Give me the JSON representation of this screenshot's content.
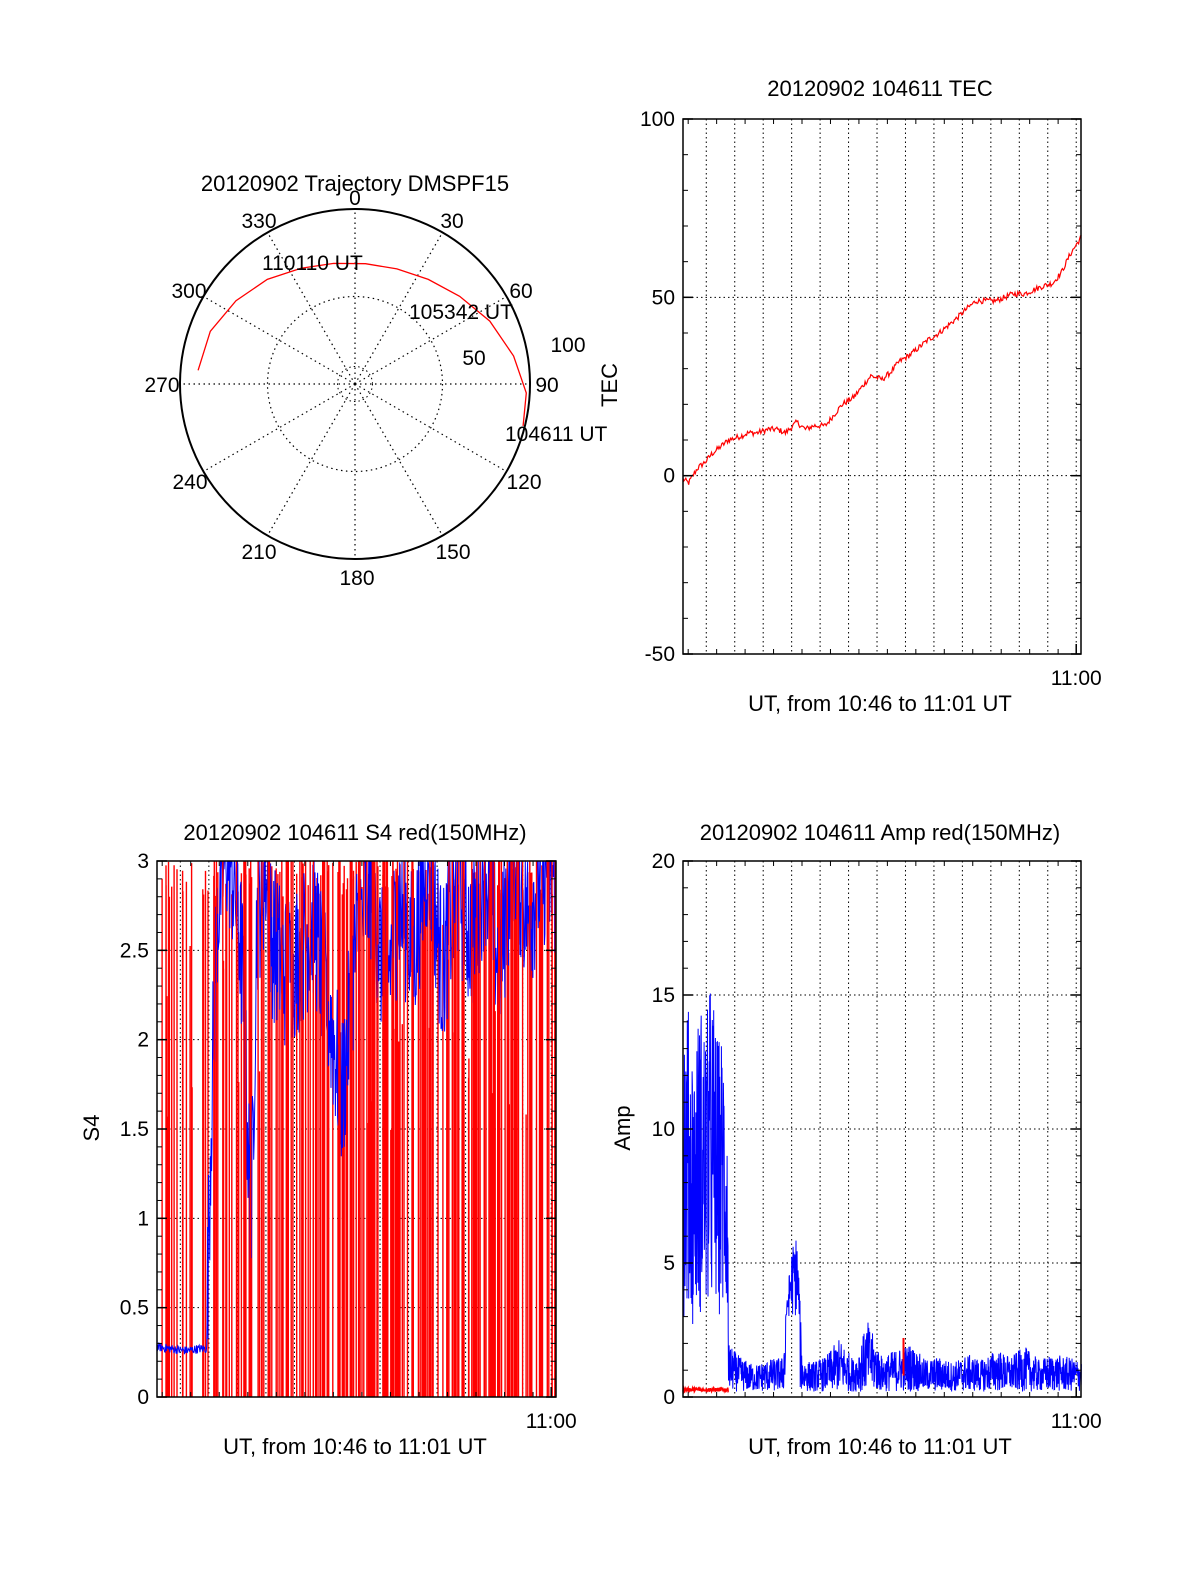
{
  "colors": {
    "red": "#ff0000",
    "blue": "#0000ff",
    "axis": "#000000",
    "grid": "#000000"
  },
  "chart_data": [
    {
      "id": "trajectory",
      "type": "polar",
      "title": "20120902 Trajectory DMSPF15",
      "azimuth_labels": [
        "0",
        "30",
        "60",
        "90",
        "120",
        "150",
        "180",
        "210",
        "240",
        "270",
        "300",
        "330"
      ],
      "radial_labels": [
        "50",
        "100"
      ],
      "radial_max": 100,
      "track": {
        "color": "#ff0000",
        "points": [
          [
            275,
            90
          ],
          [
            290,
            88
          ],
          [
            305,
            83
          ],
          [
            320,
            78
          ],
          [
            335,
            73
          ],
          [
            350,
            70
          ],
          [
            5,
            69
          ],
          [
            20,
            70
          ],
          [
            35,
            73
          ],
          [
            50,
            78
          ],
          [
            65,
            85
          ],
          [
            80,
            92
          ],
          [
            93,
            98
          ],
          [
            104,
            99
          ]
        ]
      },
      "annotations": [
        {
          "text": "110110 UT",
          "az": 277,
          "r": 88
        },
        {
          "text": "105342 UT",
          "az": 38,
          "r": 72
        },
        {
          "text": "104611 UT",
          "az": 104,
          "r": 100
        }
      ]
    },
    {
      "id": "tec",
      "type": "line",
      "title": "20120902 104611 TEC",
      "xlabel": "UT, from 10:46 to 11:01 UT",
      "ylabel": "TEC",
      "xlim": [
        10.7697,
        11.0028
      ],
      "ylim": [
        -50,
        100
      ],
      "yticks": [
        -50,
        0,
        50,
        100
      ],
      "xticks": [
        {
          "value": 11.0,
          "label": "11:00"
        }
      ],
      "grid": true,
      "series": [
        {
          "color": "#ff0000",
          "x_minutes": [
            0.0,
            0.2,
            0.5,
            0.8,
            1.0,
            1.3,
            1.6,
            2.0,
            2.3,
            2.6,
            3.0,
            3.3,
            3.6,
            4.0,
            4.3,
            4.6,
            5.0,
            5.3,
            5.6,
            6.0,
            6.3,
            6.6,
            7.0,
            7.3,
            7.6,
            8.0,
            8.3,
            8.6,
            9.0,
            9.3,
            9.6,
            10.0,
            10.3,
            10.6,
            11.0,
            11.3,
            11.6,
            12.0,
            12.3,
            12.6,
            13.0,
            13.3,
            13.6,
            14.0
          ],
          "values": [
            -1,
            -2,
            2,
            4,
            6,
            8,
            10,
            11,
            12,
            12,
            13,
            13,
            12,
            15,
            13,
            14,
            14,
            17,
            20,
            22,
            25,
            28,
            27,
            29,
            32,
            34,
            36,
            38,
            40,
            42,
            44,
            47,
            49,
            49,
            49,
            50,
            51,
            51,
            52,
            53,
            54,
            57,
            62,
            67
          ]
        }
      ]
    },
    {
      "id": "s4",
      "type": "line",
      "title": "20120902 104611 S4 red(150MHz)",
      "xlabel": "UT, from 10:46 to 11:01 UT",
      "ylabel": "S4",
      "xlim": [
        10.7697,
        11.0028
      ],
      "ylim": [
        0,
        3
      ],
      "yticks": [
        0,
        0.5,
        1,
        1.5,
        2,
        2.5,
        3
      ],
      "ytick_labels": [
        "0",
        "0.5",
        "1",
        "1.5",
        "2",
        "2.5",
        "3"
      ],
      "xticks": [
        {
          "value": 11.0,
          "label": "11:00"
        }
      ],
      "grid": true,
      "series": [
        {
          "color": "#0000ff",
          "name": "",
          "x_minutes": [
            0.0,
            0.5,
            1.0,
            1.5,
            1.75,
            1.9,
            2.1,
            2.3,
            2.5,
            2.8,
            3.0,
            3.3,
            3.5,
            3.8,
            4.0,
            4.5,
            5.0,
            5.5,
            6.0,
            6.5,
            7.0,
            7.5,
            8.0,
            8.5,
            9.0,
            9.5,
            10.0,
            10.5,
            11.0,
            11.5,
            12.0,
            12.5,
            13.0,
            13.5,
            14.0
          ],
          "values": [
            0.28,
            0.27,
            0.26,
            0.27,
            0.27,
            1.4,
            2.5,
            2.8,
            2.9,
            2.6,
            2.2,
            0.7,
            2.5,
            2.8,
            2.4,
            2.2,
            2.3,
            2.5,
            2.0,
            1.5,
            2.4,
            2.7,
            2.1,
            2.6,
            2.3,
            2.9,
            2.2,
            2.7,
            2.4,
            2.8,
            2.2,
            2.9,
            2.5,
            2.8,
            2.7
          ]
        },
        {
          "color": "#ff0000",
          "name": "",
          "note_free_spikes": true,
          "x_minutes": [
            0.2,
            0.4,
            0.6,
            0.8,
            1.0,
            1.2,
            1.5,
            1.8,
            2.0,
            2.3,
            2.6,
            2.9,
            3.2,
            3.4,
            3.7,
            3.9,
            4.2,
            4.5,
            4.7,
            5.0,
            5.3,
            5.6,
            5.9,
            6.1,
            6.4,
            6.7,
            7.0,
            7.3,
            7.6,
            7.9,
            8.2,
            8.5,
            8.8,
            9.1,
            9.4,
            9.7,
            10.0,
            10.3,
            10.6,
            10.9,
            11.2,
            11.5,
            11.8,
            12.1,
            12.4,
            12.7,
            13.0,
            13.3,
            13.6,
            13.9
          ],
          "values": [
            3,
            3,
            3,
            3,
            3,
            3,
            3,
            3,
            3,
            3,
            3,
            3,
            3,
            3,
            3,
            3,
            3,
            3,
            3,
            3,
            3,
            3,
            3,
            3,
            3,
            3,
            3,
            3,
            3,
            3,
            3,
            3,
            3,
            3,
            3,
            3,
            3,
            3,
            3,
            3,
            3,
            3,
            3,
            3,
            3,
            3,
            3,
            3,
            3,
            3
          ]
        }
      ]
    },
    {
      "id": "amp",
      "type": "line",
      "title": "20120902 104611 Amp red(150MHz)",
      "xlabel": "UT, from 10:46 to 11:01 UT",
      "ylabel": "Amp",
      "xlim": [
        10.7697,
        11.0028
      ],
      "ylim": [
        0,
        20
      ],
      "yticks": [
        0,
        5,
        10,
        15,
        20
      ],
      "xticks": [
        {
          "value": 11.0,
          "label": "11:00"
        }
      ],
      "grid": true,
      "series": [
        {
          "color": "#ff0000",
          "name": "",
          "x_minutes": [
            0.0,
            0.3,
            0.6,
            0.9,
            1.2,
            1.5,
            1.6
          ],
          "values": [
            0.2,
            0.3,
            0.25,
            0.3,
            0.2,
            0.3,
            0.2
          ]
        },
        {
          "color": "#0000ff",
          "name": "",
          "x_minutes": [
            0.0,
            0.2,
            0.4,
            0.6,
            0.8,
            1.0,
            1.2,
            1.4,
            1.55,
            1.6,
            2.0,
            2.5,
            3.0,
            3.5,
            3.8,
            4.0,
            4.2,
            4.5,
            5.0,
            5.5,
            6.0,
            6.5,
            7.0,
            7.5,
            8.0,
            8.5,
            9.0,
            9.5,
            10.0,
            10.5,
            11.0,
            11.5,
            12.0,
            12.5,
            13.0,
            13.5,
            14.0
          ],
          "values": [
            15.5,
            14.5,
            13.0,
            15.0,
            14.0,
            16.0,
            13.5,
            13.8,
            12.5,
            2.0,
            1.5,
            1.2,
            1.4,
            1.5,
            5.5,
            6.2,
            1.5,
            1.3,
            1.5,
            2.2,
            1.4,
            2.8,
            1.5,
            1.8,
            2.0,
            1.4,
            1.5,
            1.3,
            1.6,
            1.4,
            1.8,
            1.5,
            1.9,
            1.4,
            1.6,
            1.5,
            1.4
          ]
        }
      ]
    }
  ]
}
